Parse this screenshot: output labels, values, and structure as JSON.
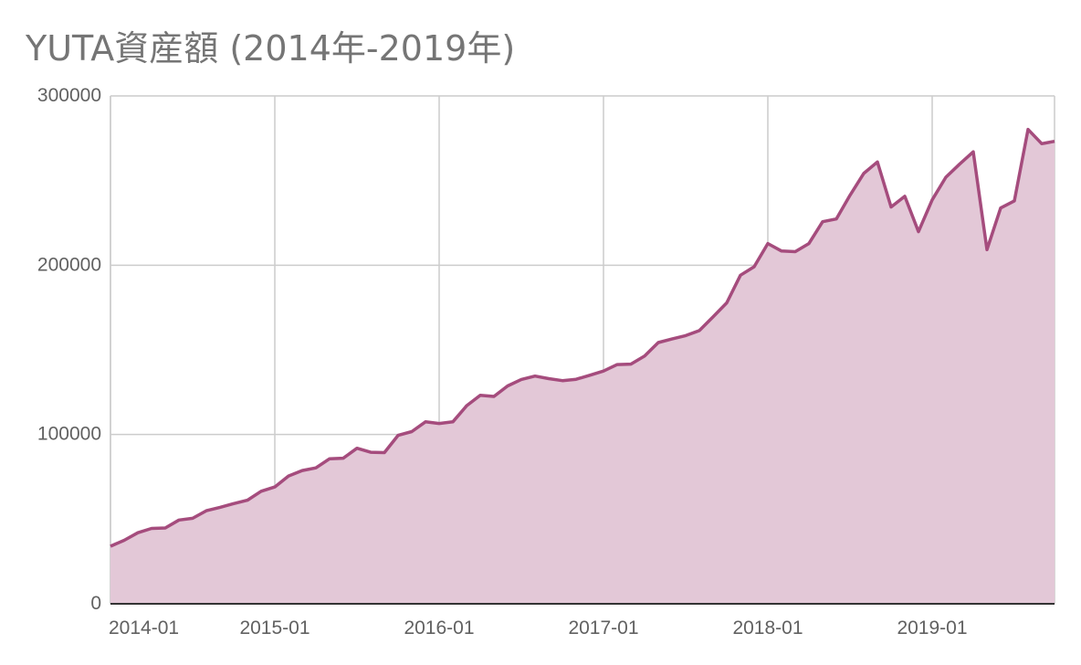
{
  "chart_data": {
    "type": "area",
    "title": "YUTA資産額 (2014年-2019年)",
    "xlabel": "",
    "ylabel": "",
    "ylim": [
      0,
      300000
    ],
    "y_ticks": [
      "0",
      "100000",
      "200000",
      "300000"
    ],
    "x_ticks": [
      "2014-01",
      "2015-01",
      "2016-01",
      "2017-01",
      "2018-01",
      "2019-01"
    ],
    "grid": true,
    "legend": "none",
    "colors": {
      "line": "#A54C7D",
      "fill": "#E3C8D7",
      "grid": "#CCCCCC",
      "baseline": "#333333"
    },
    "series": [
      {
        "x": [
          "2014-01",
          "2014-02",
          "2014-03",
          "2014-04",
          "2014-05",
          "2014-06",
          "2014-07",
          "2014-08",
          "2014-09",
          "2014-10",
          "2014-11",
          "2014-12",
          "2015-01",
          "2015-02",
          "2015-03",
          "2015-04",
          "2015-05",
          "2015-06",
          "2015-07",
          "2015-08",
          "2015-09",
          "2015-10",
          "2015-11",
          "2015-12",
          "2016-01",
          "2016-02",
          "2016-03",
          "2016-04",
          "2016-05",
          "2016-06",
          "2016-07",
          "2016-08",
          "2016-09",
          "2016-10",
          "2016-11",
          "2016-12",
          "2017-01",
          "2017-02",
          "2017-03",
          "2017-04",
          "2017-05",
          "2017-06",
          "2017-07",
          "2017-08",
          "2017-09",
          "2017-10",
          "2017-11",
          "2017-12",
          "2018-01",
          "2018-02",
          "2018-03",
          "2018-04",
          "2018-05",
          "2018-06",
          "2018-07",
          "2018-08",
          "2018-09",
          "2018-10",
          "2018-11",
          "2018-12",
          "2019-01",
          "2019-02",
          "2019-03",
          "2019-04",
          "2019-05",
          "2019-06",
          "2019-07",
          "2019-08",
          "2019-09",
          "2019-10"
        ],
        "values": [
          34000,
          37500,
          42000,
          44500,
          44800,
          49500,
          50500,
          55000,
          57000,
          59200,
          61200,
          66500,
          69000,
          75500,
          78700,
          80300,
          85700,
          86000,
          91900,
          89500,
          89300,
          99500,
          101700,
          107500,
          106500,
          107500,
          116900,
          123200,
          122500,
          128700,
          132500,
          134500,
          133000,
          131800,
          132600,
          135000,
          137500,
          141300,
          141600,
          146400,
          154300,
          156400,
          158400,
          161400,
          169500,
          177800,
          194100,
          199100,
          212800,
          208400,
          208000,
          212800,
          225700,
          227300,
          241300,
          254200,
          261000,
          234400,
          240700,
          219800,
          238600,
          252000,
          259700,
          267000,
          209200,
          233800,
          238000,
          280200,
          271800,
          273200
        ]
      }
    ]
  }
}
